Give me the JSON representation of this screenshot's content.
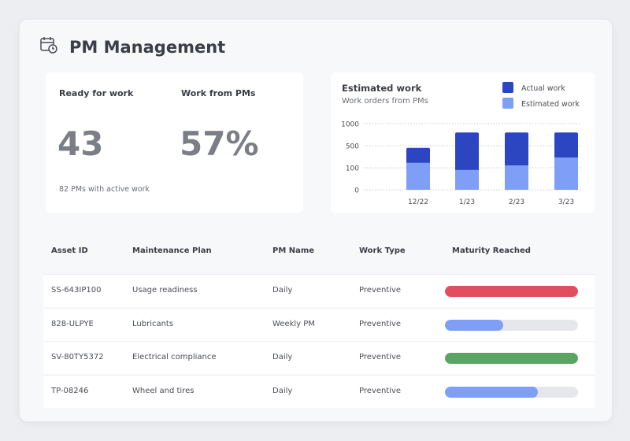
{
  "header": {
    "title": "PM Management",
    "icon": "calendar-clock-icon"
  },
  "stats": {
    "ready": {
      "label": "Ready for work",
      "value": "43",
      "note": "82 PMs with active work"
    },
    "work_from_pms": {
      "label": "Work from PMs",
      "value": "57%"
    }
  },
  "chart_data": {
    "type": "bar",
    "stacked": true,
    "title": "Estimated work",
    "subtitle": "Work orders from PMs",
    "categories": [
      "12/22",
      "1/23",
      "2/23",
      "3/23"
    ],
    "yticks": [
      0,
      100,
      500,
      1000
    ],
    "series": [
      {
        "name": "Estimated work",
        "color": "#7f9ef5",
        "values": [
          190,
          90,
          143,
          286
        ]
      },
      {
        "name": "Actual work",
        "color": "#2c46c2",
        "values": [
          460,
          800,
          800,
          800
        ],
        "note": "stack top"
      }
    ],
    "legend": "top-right",
    "grid": true
  },
  "table": {
    "headers": [
      "Asset ID",
      "Maintenance Plan",
      "PM Name",
      "Work Type",
      "Maturity Reached"
    ],
    "rows": [
      {
        "asset": "SS-643IP100",
        "plan": "Usage readiness",
        "pm": "Daily",
        "type": "Preventive",
        "maturity": 100,
        "color": "#e04f5f"
      },
      {
        "asset": "828-ULPYE",
        "plan": "Lubricants",
        "pm": "Weekly PM",
        "type": "Preventive",
        "maturity": 44,
        "color": "#7f9ef5"
      },
      {
        "asset": "SV-80TY5372",
        "plan": "Electrical compliance",
        "pm": "Daily",
        "type": "Preventive",
        "maturity": 100,
        "color": "#5aa564"
      },
      {
        "asset": "TP-08246",
        "plan": "Wheel and tires",
        "pm": "Daily",
        "type": "Preventive",
        "maturity": 70,
        "color": "#7f9ef5"
      }
    ]
  }
}
